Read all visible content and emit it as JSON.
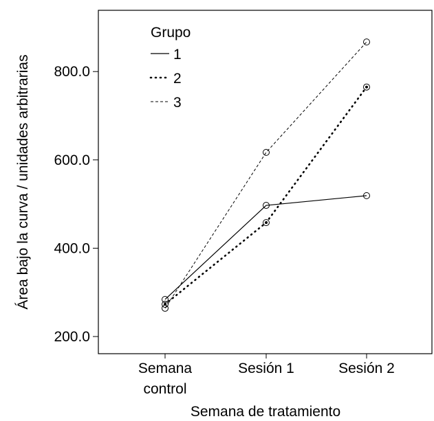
{
  "chart_data": {
    "type": "line",
    "xlabel": "Semana de tratamiento",
    "ylabel": "Área bajo la curva / unidades arbitrarias",
    "categories": [
      [
        "Semana",
        "control"
      ],
      [
        "Sesión 1"
      ],
      [
        "Sesión 2"
      ]
    ],
    "ylim": [
      165,
      925
    ],
    "yticks": [
      200,
      400,
      600,
      800
    ],
    "ytick_labels": [
      "200.0",
      "400.0",
      "600.0",
      "800.0"
    ],
    "legend": {
      "title": "Grupo",
      "placement": "top-left"
    },
    "series": [
      {
        "name": "1",
        "style": "solid",
        "values": [
          284,
          497,
          519
        ]
      },
      {
        "name": "2",
        "style": "dotted",
        "values": [
          273,
          458,
          765
        ]
      },
      {
        "name": "3",
        "style": "dashed",
        "values": [
          264,
          617,
          867
        ]
      }
    ]
  }
}
